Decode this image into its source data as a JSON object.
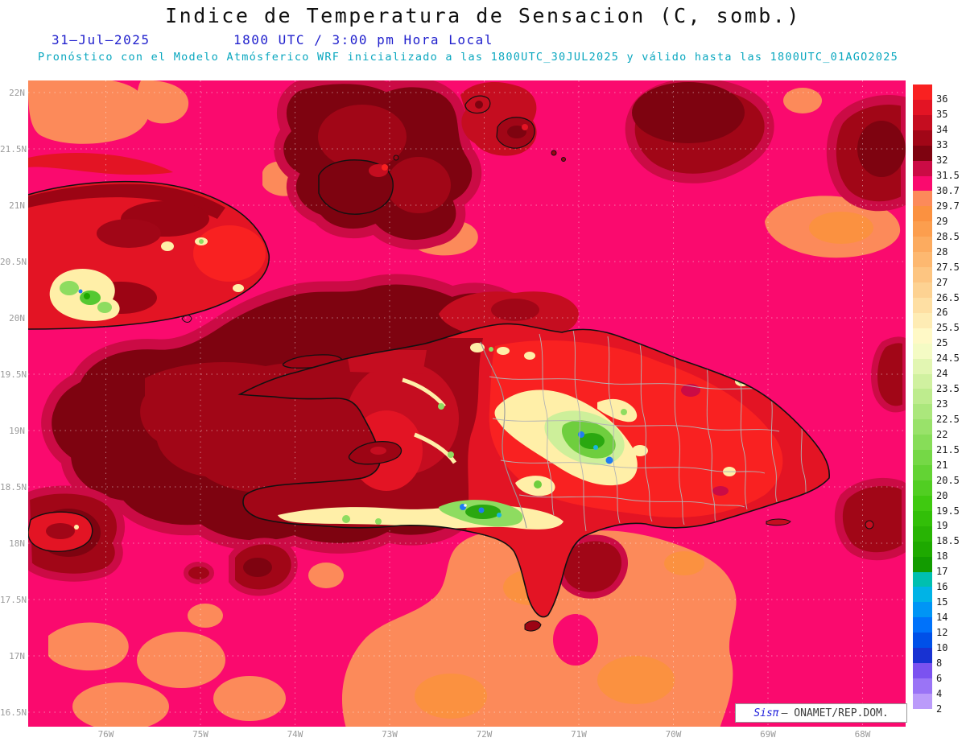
{
  "header": {
    "title": "Indice de Temperatura de Sensacion (C, somb.)",
    "date": "31–Jul–2025",
    "time": "1800 UTC / 3:00 pm Hora Local",
    "forecast": "Pronóstico con el Modelo Atmósferico WRF inicializado a las 1800UTC_30JUL2025 y válido hasta las 1800UTC_01AGO2025"
  },
  "map": {
    "lat_labels": [
      "22N",
      "21.5N",
      "21N",
      "20.5N",
      "20N",
      "19.5N",
      "19N",
      "18.5N",
      "18N",
      "17.5N",
      "17N",
      "16.5N"
    ],
    "lon_labels": [
      "76W",
      "75W",
      "74W",
      "73W",
      "72W",
      "71W",
      "70W",
      "69W",
      "68W"
    ]
  },
  "legend": {
    "labels": [
      "36",
      "35",
      "34",
      "33",
      "32",
      "31.5",
      "30.7",
      "29.7",
      "29",
      "28.5",
      "28",
      "27.5",
      "27",
      "26.5",
      "26",
      "25.5",
      "25",
      "24.5",
      "24",
      "23.5",
      "23",
      "22.5",
      "22",
      "21.5",
      "21",
      "20.5",
      "20",
      "19.5",
      "19",
      "18.5",
      "18",
      "17",
      "16",
      "15",
      "14",
      "12",
      "10",
      "8",
      "6",
      "4",
      "2"
    ],
    "colors": [
      "#f92121",
      "#e31424",
      "#c50d20",
      "#a10617",
      "#7e0310",
      "#cb0b45",
      "#fa0a6e",
      "#fc8a5a",
      "#fb9140",
      "#fc9e4e",
      "#fcab5f",
      "#fdb870",
      "#fdc581",
      "#fdd292",
      "#fedfa3",
      "#feecb4",
      "#fff9c6",
      "#f4fbc4",
      "#e2f6b2",
      "#d0f1a0",
      "#beec8e",
      "#abe77c",
      "#99e26a",
      "#87dd58",
      "#75d846",
      "#63d334",
      "#51ce22",
      "#3fc910",
      "#32bf08",
      "#28b404",
      "#1ea900",
      "#129b00",
      "#00bfb0",
      "#00b3e6",
      "#0095f5",
      "#0072fa",
      "#0050e8",
      "#1832d2",
      "#7b52f0",
      "#9a74f6",
      "#bb9bfa",
      "#ffffff"
    ]
  },
  "watermark": {
    "app": "Sisπ",
    "org": "– ONAMET/REP.DOM."
  },
  "palette": {
    "sea_pink": "#fa0a6e",
    "orange": "#fc8a5a",
    "crimson": "#cb0b45",
    "dark_maroon": "#7e0310",
    "maroon": "#a10617",
    "red": "#c50d20",
    "bright_red": "#f92121",
    "subtitle_blue": "#2121cd",
    "forecast_cyan": "#09a7bf",
    "axis_gray": "#9a9a9a"
  }
}
